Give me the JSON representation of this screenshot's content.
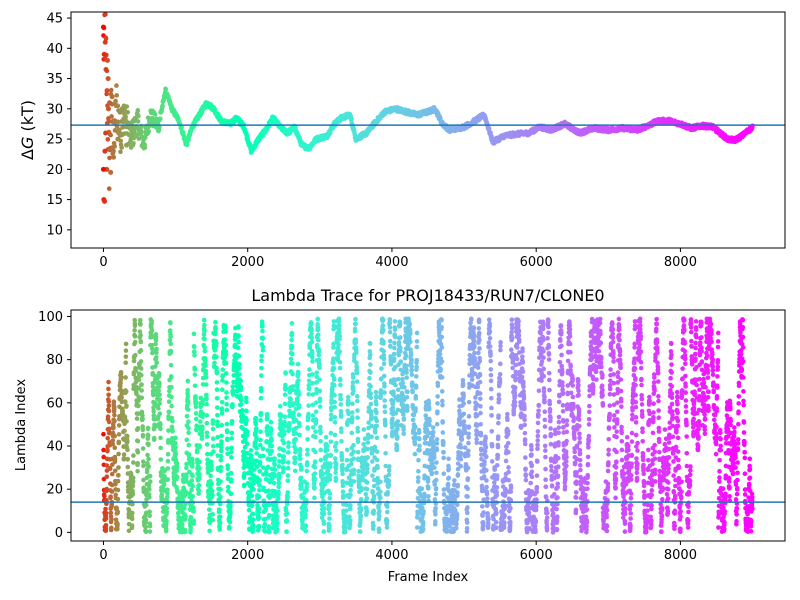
{
  "chart_data": [
    {
      "type": "scatter",
      "title": "",
      "xlabel": "",
      "ylabel": "ΔG (kT)",
      "ylabel_parts": {
        "delta": "Δ",
        "var": "G",
        "unit": " (kT)"
      },
      "xlim": [
        -450,
        9450
      ],
      "ylim": [
        7,
        46
      ],
      "xticks": [
        0,
        2000,
        4000,
        6000,
        8000
      ],
      "yticks": [
        10,
        15,
        20,
        25,
        30,
        35,
        40,
        45
      ],
      "colormap": "rainbow",
      "reference_line": {
        "y": 27.3,
        "color": "#1f77b4"
      },
      "trace_points": [
        [
          0,
          40
        ],
        [
          20,
          44
        ],
        [
          40,
          36
        ],
        [
          60,
          28
        ],
        [
          80,
          21
        ],
        [
          110,
          30
        ],
        [
          140,
          23
        ],
        [
          180,
          31
        ],
        [
          230,
          26
        ],
        [
          300,
          29
        ],
        [
          380,
          25
        ],
        [
          470,
          28
        ],
        [
          560,
          24
        ],
        [
          650,
          29
        ],
        [
          760,
          27
        ],
        [
          860,
          33
        ],
        [
          950,
          30
        ],
        [
          1050,
          28
        ],
        [
          1150,
          24
        ],
        [
          1230,
          27
        ],
        [
          1330,
          29
        ],
        [
          1430,
          31
        ],
        [
          1530,
          30
        ],
        [
          1630,
          28
        ],
        [
          1750,
          27.5
        ],
        [
          1850,
          28.5
        ],
        [
          1950,
          27
        ],
        [
          2050,
          23
        ],
        [
          2150,
          25
        ],
        [
          2250,
          26.5
        ],
        [
          2350,
          28.5
        ],
        [
          2450,
          27
        ],
        [
          2550,
          26
        ],
        [
          2650,
          27
        ],
        [
          2750,
          24
        ],
        [
          2850,
          23.5
        ],
        [
          2950,
          25
        ],
        [
          3100,
          25.5
        ],
        [
          3200,
          27.5
        ],
        [
          3300,
          28.5
        ],
        [
          3420,
          29
        ],
        [
          3500,
          25
        ],
        [
          3650,
          26
        ],
        [
          3750,
          27.5
        ],
        [
          3900,
          29.5
        ],
        [
          4050,
          30
        ],
        [
          4200,
          29.5
        ],
        [
          4350,
          29
        ],
        [
          4500,
          29.5
        ],
        [
          4600,
          30
        ],
        [
          4700,
          27.5
        ],
        [
          4800,
          26.5
        ],
        [
          5000,
          27
        ],
        [
          5150,
          28
        ],
        [
          5280,
          29
        ],
        [
          5400,
          24.5
        ],
        [
          5550,
          25.5
        ],
        [
          5700,
          25.8
        ],
        [
          5900,
          26
        ],
        [
          6050,
          27
        ],
        [
          6200,
          26.5
        ],
        [
          6400,
          27.5
        ],
        [
          6600,
          26
        ],
        [
          6800,
          26.8
        ],
        [
          7000,
          26.5
        ],
        [
          7200,
          26.8
        ],
        [
          7400,
          26.5
        ],
        [
          7600,
          27.5
        ],
        [
          7700,
          28
        ],
        [
          7850,
          28
        ],
        [
          8000,
          27.5
        ],
        [
          8150,
          26.8
        ],
        [
          8300,
          27.2
        ],
        [
          8450,
          27
        ],
        [
          8550,
          26
        ],
        [
          8650,
          25
        ],
        [
          8750,
          24.8
        ],
        [
          8850,
          25.5
        ],
        [
          9000,
          27
        ]
      ],
      "early_scatter": [
        [
          0,
          43.5
        ],
        [
          10,
          39
        ],
        [
          25,
          41
        ],
        [
          35,
          36.5
        ],
        [
          50,
          33
        ],
        [
          70,
          30
        ],
        [
          5,
          15
        ],
        [
          15,
          14.7
        ],
        [
          45,
          20
        ],
        [
          0,
          20
        ],
        [
          20,
          23
        ],
        [
          30,
          26
        ],
        [
          55,
          38
        ],
        [
          65,
          35
        ],
        [
          85,
          31
        ],
        [
          100,
          19.5
        ],
        [
          120,
          32
        ],
        [
          140,
          22
        ],
        [
          160,
          28
        ],
        [
          200,
          25
        ],
        [
          260,
          30
        ],
        [
          320,
          24
        ],
        [
          390,
          27
        ]
      ]
    },
    {
      "type": "scatter",
      "title": "Lambda Trace for PROJ18433/RUN7/CLONE0",
      "xlabel": "Frame Index",
      "ylabel": "Lambda Index",
      "xlim": [
        -450,
        9450
      ],
      "ylim": [
        -4,
        103
      ],
      "xticks": [
        0,
        2000,
        4000,
        6000,
        8000
      ],
      "yticks": [
        0,
        20,
        40,
        60,
        80,
        100
      ],
      "colormap": "rainbow",
      "reference_line": {
        "y": 14,
        "color": "#1f77b4"
      },
      "frame_range": [
        0,
        9000
      ],
      "lambda_range": [
        0,
        99
      ]
    }
  ]
}
